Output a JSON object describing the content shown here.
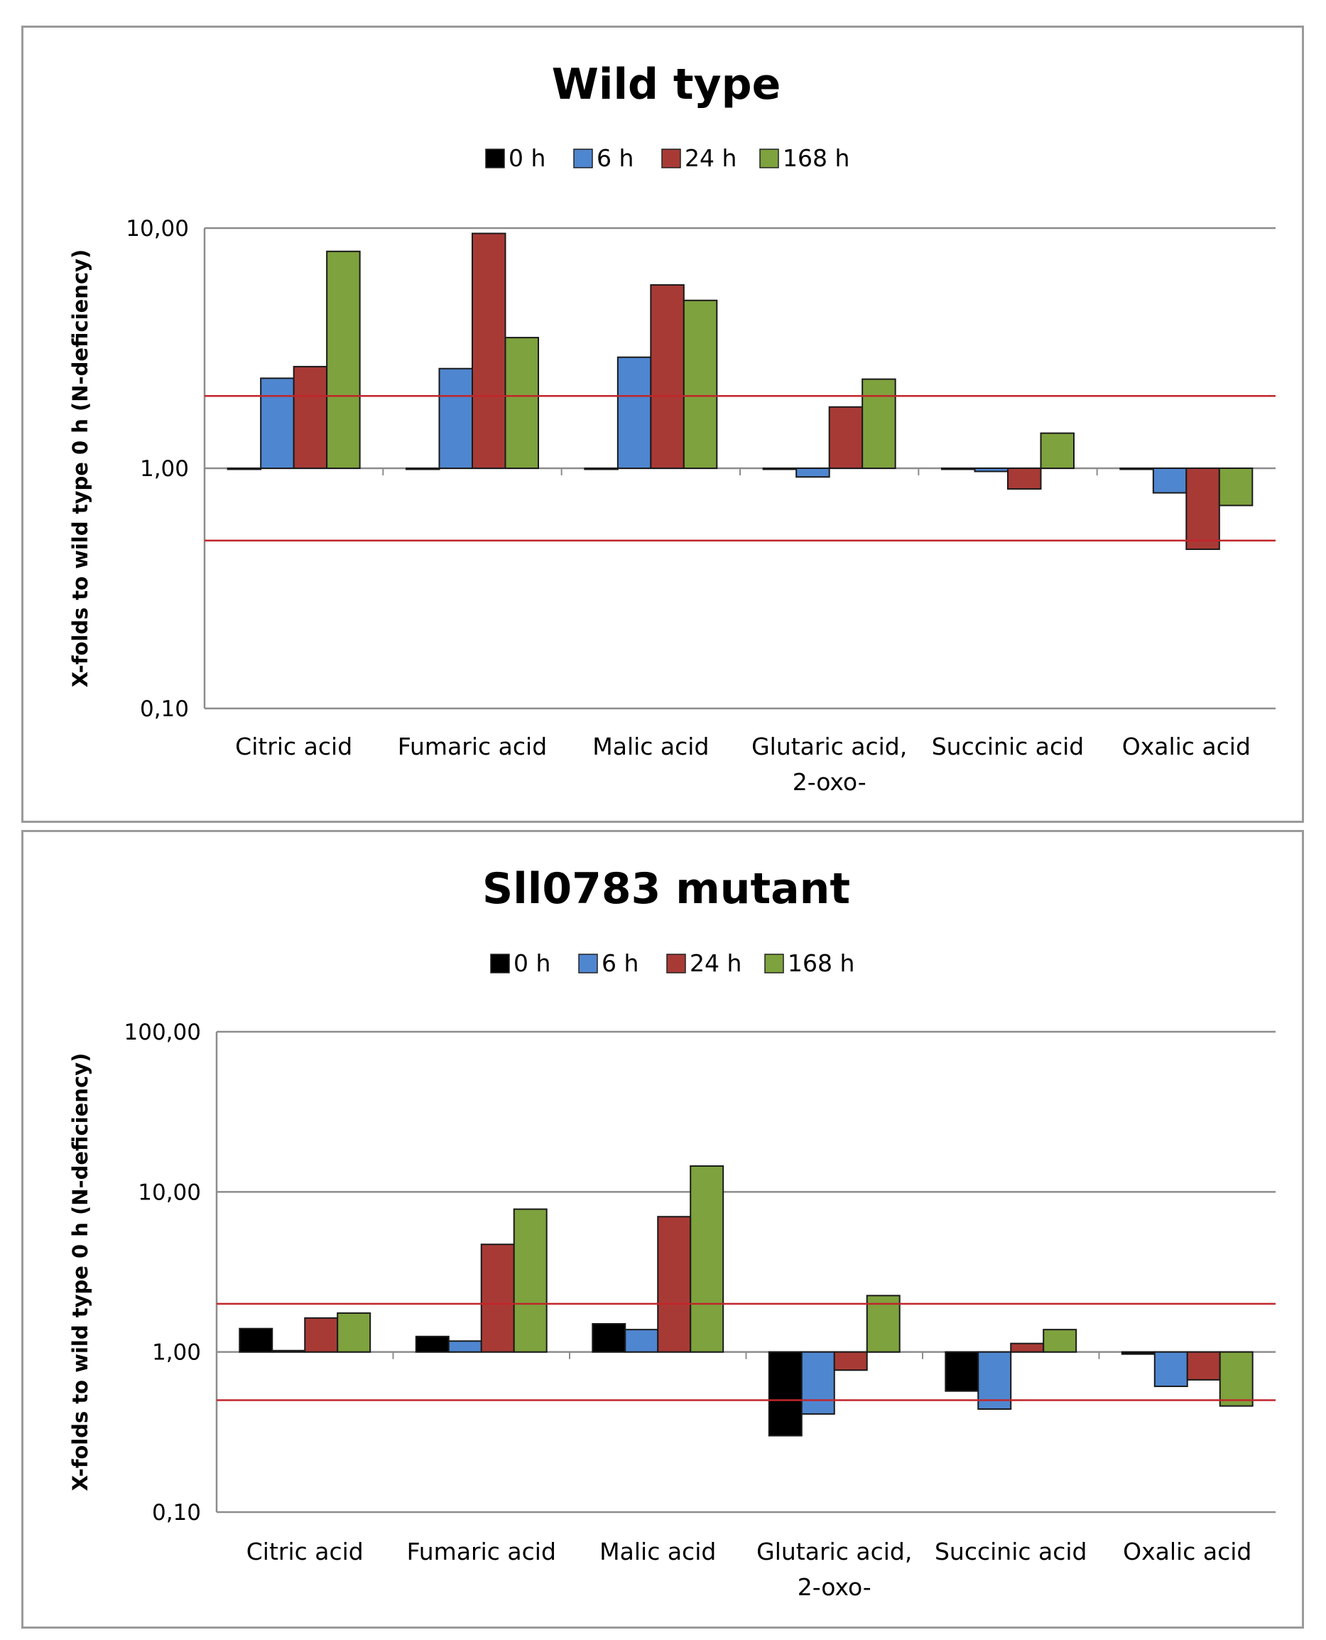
{
  "chart_data": [
    {
      "type": "bar",
      "title": "Wild type",
      "ylabel": "X-folds to wild type 0 h (N-deficiency)",
      "xlabel": "",
      "y_scale": "log",
      "ylim": [
        0.1,
        10
      ],
      "y_ticks": [
        "10,00",
        "1,00",
        "0,10"
      ],
      "y_tick_values": [
        10,
        1,
        0.1
      ],
      "reference_lines": [
        2,
        0.5
      ],
      "baseline": 1,
      "legend_position": "top-center",
      "categories": [
        "Citric acid",
        "Fumaric acid",
        "Malic acid",
        "Glutaric acid, 2-oxo-",
        "Succinic acid",
        "Oxalic acid"
      ],
      "category_lines": [
        [
          "Citric acid"
        ],
        [
          "Fumaric acid"
        ],
        [
          "Malic acid"
        ],
        [
          "Glutaric acid,",
          "2-oxo-"
        ],
        [
          "Succinic acid"
        ],
        [
          "Oxalic acid"
        ]
      ],
      "series": [
        {
          "name": "0 h",
          "color": "#000000",
          "values": [
            1.0,
            1.0,
            1.0,
            1.0,
            1.0,
            1.0
          ]
        },
        {
          "name": "6 h",
          "color": "#4f86d0",
          "values": [
            2.37,
            2.6,
            2.9,
            0.92,
            0.97,
            0.79
          ]
        },
        {
          "name": "24 h",
          "color": "#a83a36",
          "values": [
            2.65,
            9.5,
            5.8,
            1.8,
            0.82,
            0.46
          ]
        },
        {
          "name": "168 h",
          "color": "#7ea23d",
          "values": [
            8.0,
            3.5,
            5.0,
            2.35,
            1.4,
            0.7
          ]
        }
      ]
    },
    {
      "type": "bar",
      "title": "Sll0783 mutant",
      "ylabel": "X-folds to wild type 0 h (N-deficiency)",
      "xlabel": "",
      "y_scale": "log",
      "ylim": [
        0.1,
        100
      ],
      "y_ticks": [
        "100,00",
        "10,00",
        "1,00",
        "0,10"
      ],
      "y_tick_values": [
        100,
        10,
        1,
        0.1
      ],
      "reference_lines": [
        2,
        0.5
      ],
      "baseline": 1,
      "legend_position": "top-center",
      "categories": [
        "Citric acid",
        "Fumaric acid",
        "Malic acid",
        "Glutaric acid, 2-oxo-",
        "Succinic acid",
        "Oxalic acid"
      ],
      "category_lines": [
        [
          "Citric acid"
        ],
        [
          "Fumaric acid"
        ],
        [
          "Malic acid"
        ],
        [
          "Glutaric acid,",
          "2-oxo-"
        ],
        [
          "Succinic acid"
        ],
        [
          "Oxalic acid"
        ]
      ],
      "series": [
        {
          "name": "0 h",
          "color": "#000000",
          "values": [
            1.4,
            1.25,
            1.5,
            0.3,
            0.57,
            0.97
          ]
        },
        {
          "name": "6 h",
          "color": "#4f86d0",
          "values": [
            1.02,
            1.17,
            1.38,
            0.41,
            0.44,
            0.61
          ]
        },
        {
          "name": "24 h",
          "color": "#a83a36",
          "values": [
            1.63,
            4.7,
            7.0,
            0.77,
            1.13,
            0.67
          ]
        },
        {
          "name": "168 h",
          "color": "#7ea23d",
          "values": [
            1.75,
            7.8,
            14.5,
            2.25,
            1.38,
            0.46
          ]
        }
      ]
    }
  ]
}
